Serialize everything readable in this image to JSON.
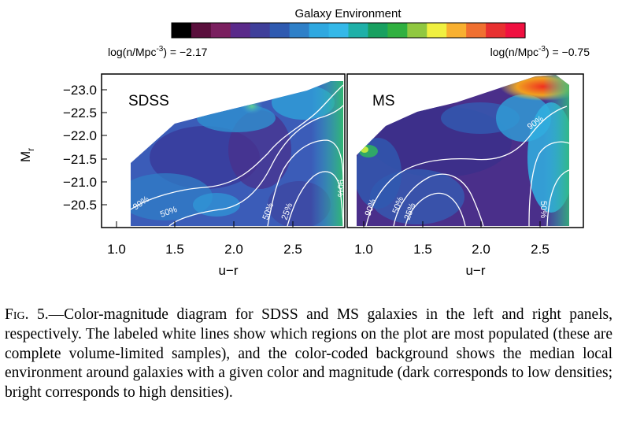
{
  "figure": {
    "colorbar": {
      "title": "Galaxy Environment",
      "min_label_prefix": "log(n/Mpc",
      "min_label_exp": "-3",
      "min_label_suffix": ") = −2.17",
      "max_label_prefix": "log(n/Mpc",
      "max_label_exp": "-3",
      "max_label_suffix": ") = −0.75",
      "colors": [
        "#000000",
        "#5a0f3c",
        "#7a1f5f",
        "#5a2a8a",
        "#3f3f9a",
        "#2f5ab0",
        "#2f80c8",
        "#2fa8e0",
        "#34b8e8",
        "#1fb0a8",
        "#18a060",
        "#30b040",
        "#90c840",
        "#f0f040",
        "#f8b030",
        "#f07030",
        "#e83030",
        "#f01040"
      ]
    },
    "panels": [
      {
        "name": "SDSS",
        "contours": [
          "90%",
          "50%",
          "50%",
          "25%",
          "90%"
        ]
      },
      {
        "name": "MS",
        "contours": [
          "90%",
          "50%",
          "25%",
          "90%",
          "50%"
        ]
      }
    ],
    "y_axis": {
      "label": "M",
      "label_sub": "r",
      "ticks": [
        "−23.0",
        "−22.5",
        "−22.0",
        "−21.5",
        "−21.0",
        "−20.5"
      ]
    },
    "x_axis": {
      "label": "u−r",
      "ticks": [
        "1.0",
        "1.5",
        "2.0",
        "2.5"
      ]
    }
  },
  "caption": {
    "label": "Fig. 5.",
    "text": "—Color-magnitude diagram for SDSS and MS galaxies in the left and right panels, respectively. The labeled white lines show which regions on the plot are most populated (these are complete volume-limited samples), and the color-coded background shows the median local environment around galaxies with a given color and magnitude (dark corresponds to low densities; bright corresponds to high densities)."
  }
}
